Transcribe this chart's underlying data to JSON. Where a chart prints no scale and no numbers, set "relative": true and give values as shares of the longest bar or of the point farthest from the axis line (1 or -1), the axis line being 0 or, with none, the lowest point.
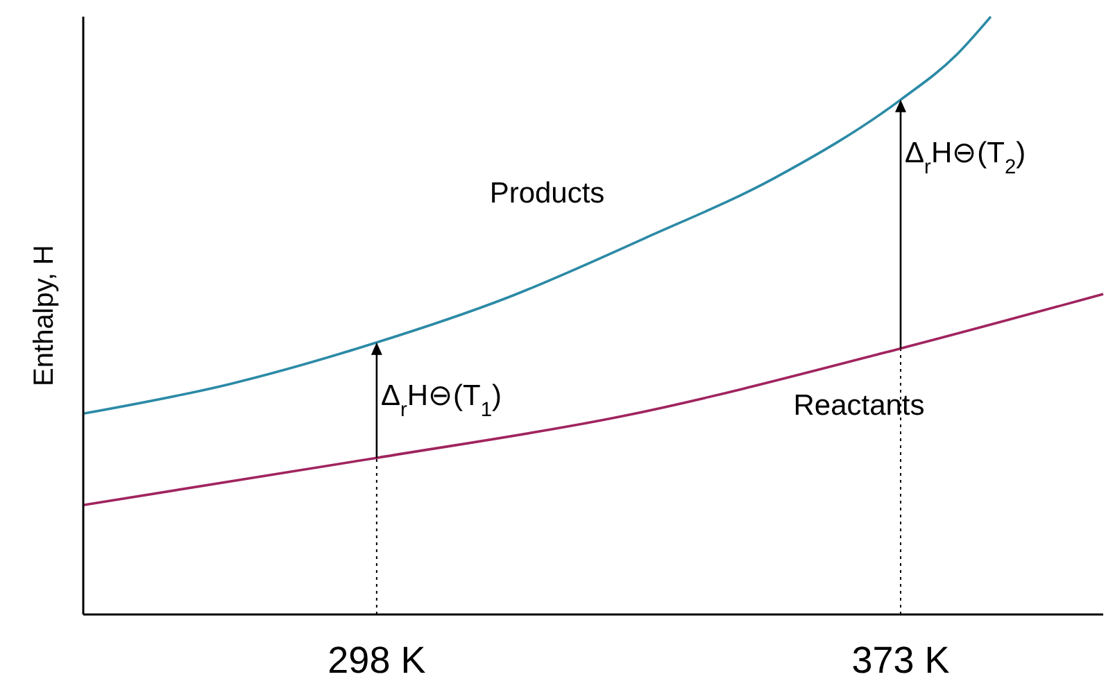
{
  "chart_data": {
    "type": "line",
    "relative": true,
    "ylabel": "Enthalpy, H",
    "xlim": [
      256,
      402
    ],
    "xticks": [
      {
        "value": 298,
        "label": "298 K"
      },
      {
        "value": 373,
        "label": "373 K"
      }
    ],
    "grid": false,
    "marker": "none",
    "line_style": "solid",
    "series": [
      {
        "name": "Products",
        "color": "#2b8aa6",
        "x": [
          256,
          276.8,
          298,
          316.5,
          336.3,
          355.1,
          373,
          380.9,
          385.9
        ],
        "values": [
          0.336,
          0.385,
          0.455,
          0.529,
          0.629,
          0.731,
          0.861,
          0.935,
          1
        ]
      },
      {
        "name": "Reactants",
        "color": "#a0245e",
        "x": [
          256,
          298,
          333.3,
          373,
          402
        ],
        "values": [
          0.183,
          0.262,
          0.332,
          0.445,
          0.536
        ]
      }
    ],
    "ref_lines": [
      {
        "axis": "x",
        "value": 298,
        "line_style": "dotted"
      },
      {
        "axis": "x",
        "value": 373,
        "line_style": "dotted"
      }
    ],
    "annotations": [
      {
        "text": "Δ$_{r}$H⊖(T$_{1}$)",
        "x": 298,
        "y": 0.455
      },
      {
        "text": "Δ$_{r}$H⊖(T$_{2}$)",
        "x": 373,
        "y": 0.861
      }
    ]
  }
}
